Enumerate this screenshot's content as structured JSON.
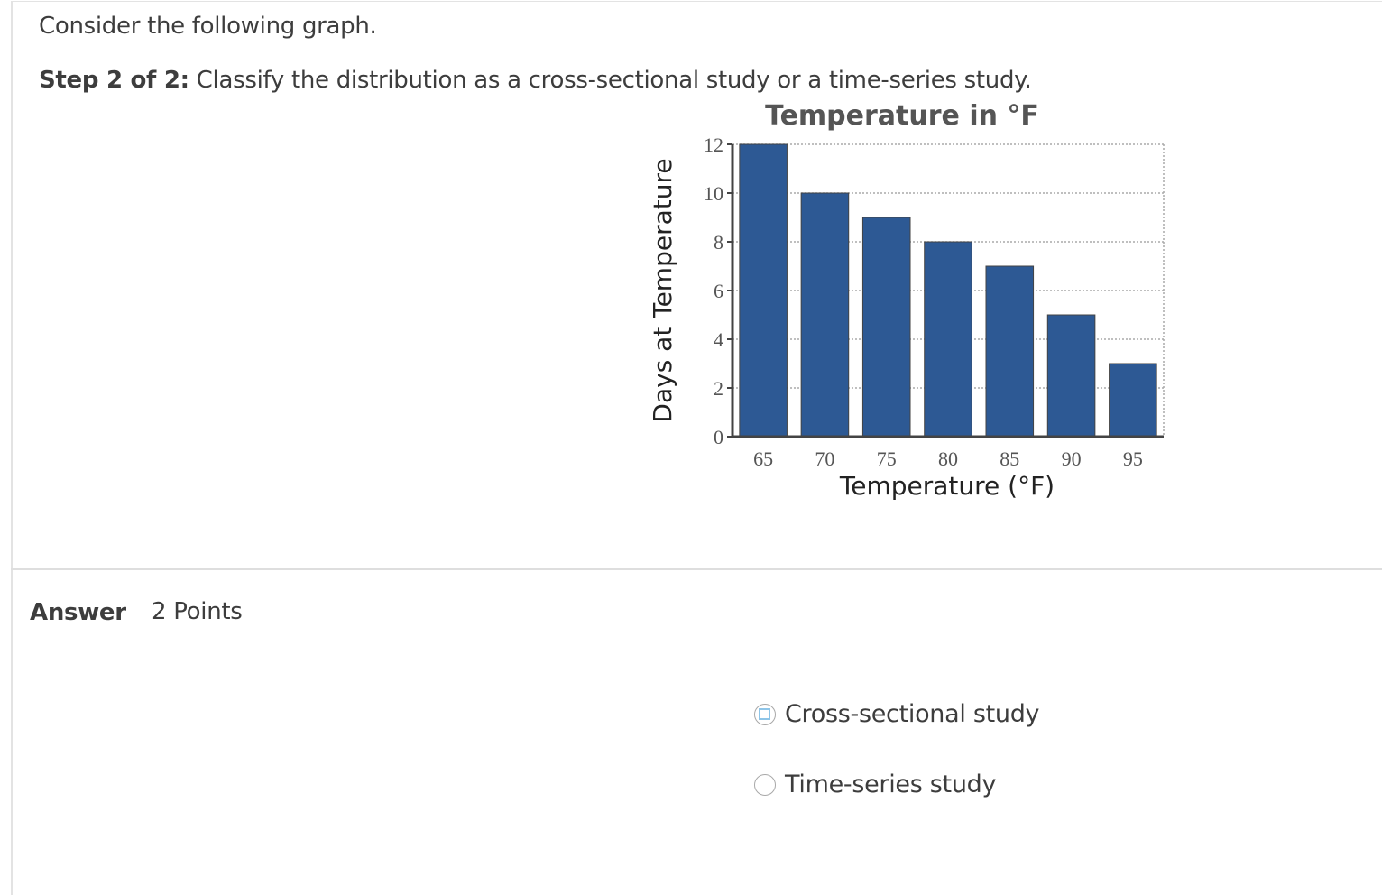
{
  "question": {
    "intro": "Consider the following graph.",
    "step_label": "Step 2 of 2:",
    "step_text": " Classify the distribution as a cross-sectional study or a time-series study."
  },
  "answer": {
    "label": "Answer",
    "points": "2 Points",
    "options": [
      {
        "label": "Cross-sectional study",
        "selected": false,
        "focused": true
      },
      {
        "label": "Time-series study",
        "selected": false,
        "focused": false
      }
    ]
  },
  "chart_data": {
    "type": "bar",
    "title": "Temperature in °F",
    "xlabel": "Temperature (°F)",
    "ylabel": "Days at Temperature",
    "categories": [
      "65",
      "70",
      "75",
      "80",
      "85",
      "90",
      "95"
    ],
    "values": [
      12,
      10,
      9,
      8,
      7,
      5,
      3
    ],
    "ylim": [
      0,
      12
    ],
    "yticks": [
      "0",
      "2",
      "4",
      "6",
      "8",
      "10",
      "12"
    ],
    "grid": true,
    "bar_color": "#2d5994"
  }
}
